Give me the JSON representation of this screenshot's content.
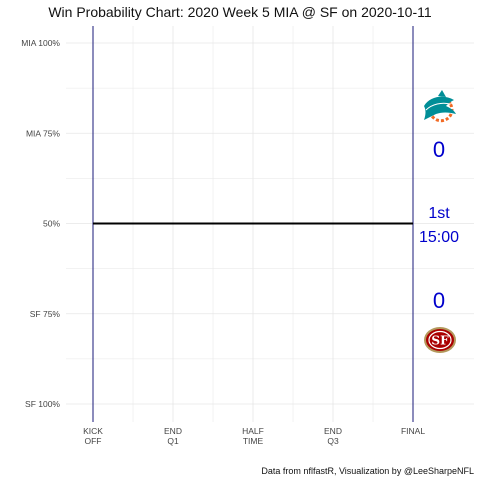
{
  "chart_data": {
    "type": "line",
    "title": "Win Probability Chart: 2020 Week 5 MIA @ SF on 2020-10-11",
    "caption": "Data from nflfastR, Visualization by @LeeSharpeNFL",
    "y_ticks": [
      {
        "value": 1.0,
        "label": "MIA 100%"
      },
      {
        "value": 0.75,
        "label": "MIA 75%"
      },
      {
        "value": 0.5,
        "label": "50%"
      },
      {
        "value": 0.25,
        "label": "SF 75%"
      },
      {
        "value": 0.0,
        "label": "SF 100%"
      }
    ],
    "x_ticks": [
      {
        "value": 0,
        "label": [
          "KICK",
          "OFF"
        ]
      },
      {
        "value": 900,
        "label": [
          "END",
          "Q1"
        ]
      },
      {
        "value": 1800,
        "label": [
          "HALF",
          "TIME"
        ]
      },
      {
        "value": 2700,
        "label": [
          "END",
          "Q3"
        ]
      },
      {
        "value": 3600,
        "label": [
          "FINAL"
        ]
      }
    ],
    "xlim": [
      0,
      3600
    ],
    "ylim": [
      0,
      1
    ],
    "series": [
      {
        "x": [
          0,
          3600
        ],
        "values": [
          0.5,
          0.5
        ]
      }
    ],
    "grid": true,
    "vertical_markers": [
      0,
      3600
    ],
    "away_team": {
      "abbr": "MIA",
      "score": "0",
      "logo": "dolphin-icon",
      "color": "#008E97"
    },
    "home_team": {
      "abbr": "SF",
      "score": "0",
      "logo": "49ers-logo-icon",
      "color": "#AA0000"
    },
    "game_clock": {
      "quarter": "1st",
      "time": "15:00"
    },
    "colors": {
      "line": "#000000",
      "marker": "#1a1a7a",
      "text": "#0000cc",
      "grid": "#e6e6e6"
    }
  }
}
